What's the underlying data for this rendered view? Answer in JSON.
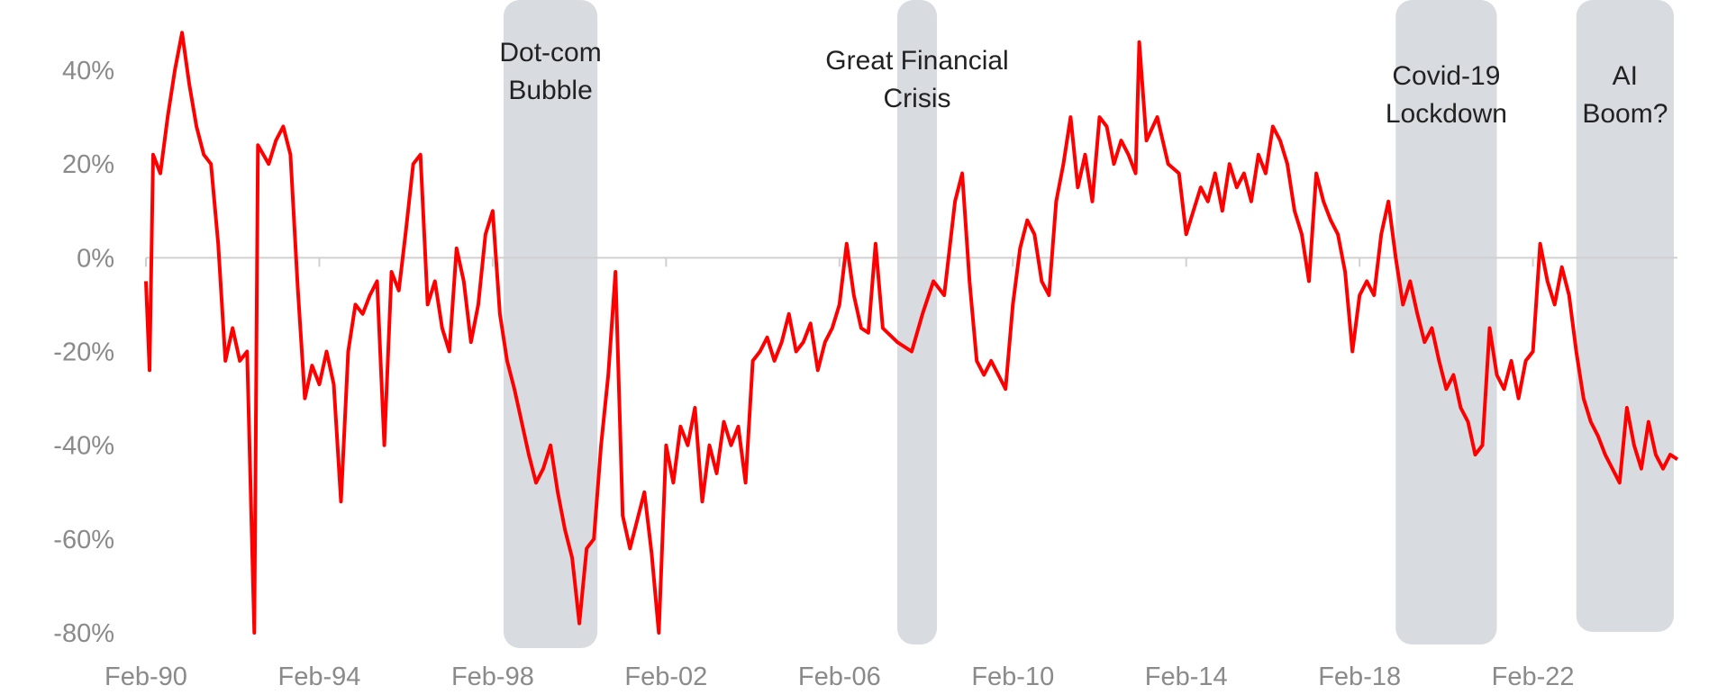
{
  "chart_data": {
    "type": "line",
    "title": "",
    "xlabel": "",
    "ylabel": "",
    "x_range": [
      "1990-02",
      "2025-06"
    ],
    "ylim": [
      -80,
      50
    ],
    "y_tick_values": [
      40,
      20,
      0,
      -20,
      -40,
      -60,
      -80
    ],
    "y_tick_labels": [
      "40%",
      "20%",
      "0%",
      "-20%",
      "-40%",
      "-60%",
      "-80%"
    ],
    "x_ticks": [
      {
        "label": "Feb-90",
        "date": "1990-02"
      },
      {
        "label": "Feb-94",
        "date": "1994-02"
      },
      {
        "label": "Feb-98",
        "date": "1998-02"
      },
      {
        "label": "Feb-02",
        "date": "2002-02"
      },
      {
        "label": "Feb-06",
        "date": "2006-02"
      },
      {
        "label": "Feb-10",
        "date": "2010-02"
      },
      {
        "label": "Feb-14",
        "date": "2014-02"
      },
      {
        "label": "Feb-18",
        "date": "2018-02"
      },
      {
        "label": "Feb-22",
        "date": "2022-02"
      }
    ],
    "grid": false,
    "zero_line": true,
    "line_color": "#ff0000",
    "shade_color": "#d8dbe0",
    "shaded_periods": [
      {
        "label_lines": [
          "Dot-com",
          "Bubble"
        ],
        "start": "1998-05",
        "end": "2000-07"
      },
      {
        "label_lines": [
          "Great Financial",
          "Crisis"
        ],
        "start": "2007-06",
        "end": "2008-05"
      },
      {
        "label_lines": [
          "Covid-19",
          "Lockdown"
        ],
        "start": "2018-12",
        "end": "2021-04"
      },
      {
        "label_lines": [
          "AI",
          "Boom?"
        ],
        "start": "2023-02",
        "end": "2025-05"
      }
    ],
    "series": [
      {
        "values": [
          [
            "1990-02",
            -5
          ],
          [
            "1990-03",
            -24
          ],
          [
            "1990-04",
            22
          ],
          [
            "1990-06",
            18
          ],
          [
            "1990-08",
            30
          ],
          [
            "1990-10",
            40
          ],
          [
            "1990-12",
            48
          ],
          [
            "1991-02",
            37
          ],
          [
            "1991-04",
            28
          ],
          [
            "1991-06",
            22
          ],
          [
            "1991-08",
            20
          ],
          [
            "1991-10",
            3
          ],
          [
            "1991-12",
            -22
          ],
          [
            "1992-02",
            -15
          ],
          [
            "1992-04",
            -22
          ],
          [
            "1992-06",
            -20
          ],
          [
            "1992-08",
            -80
          ],
          [
            "1992-09",
            24
          ],
          [
            "1992-12",
            20
          ],
          [
            "1993-02",
            25
          ],
          [
            "1993-04",
            28
          ],
          [
            "1993-06",
            22
          ],
          [
            "1993-08",
            -6
          ],
          [
            "1993-10",
            -30
          ],
          [
            "1993-12",
            -23
          ],
          [
            "1994-02",
            -27
          ],
          [
            "1994-04",
            -20
          ],
          [
            "1994-06",
            -27
          ],
          [
            "1994-08",
            -52
          ],
          [
            "1994-10",
            -20
          ],
          [
            "1994-12",
            -10
          ],
          [
            "1995-02",
            -12
          ],
          [
            "1995-04",
            -8
          ],
          [
            "1995-06",
            -5
          ],
          [
            "1995-08",
            -40
          ],
          [
            "1995-10",
            -3
          ],
          [
            "1995-12",
            -7
          ],
          [
            "1996-02",
            6
          ],
          [
            "1996-04",
            20
          ],
          [
            "1996-06",
            22
          ],
          [
            "1996-08",
            -10
          ],
          [
            "1996-10",
            -5
          ],
          [
            "1996-12",
            -15
          ],
          [
            "1997-02",
            -20
          ],
          [
            "1997-04",
            2
          ],
          [
            "1997-06",
            -5
          ],
          [
            "1997-08",
            -18
          ],
          [
            "1997-10",
            -10
          ],
          [
            "1997-12",
            5
          ],
          [
            "1998-02",
            10
          ],
          [
            "1998-04",
            -12
          ],
          [
            "1998-06",
            -22
          ],
          [
            "1998-08",
            -28
          ],
          [
            "1998-10",
            -35
          ],
          [
            "1998-12",
            -42
          ],
          [
            "1999-02",
            -48
          ],
          [
            "1999-04",
            -45
          ],
          [
            "1999-06",
            -40
          ],
          [
            "1999-08",
            -50
          ],
          [
            "1999-10",
            -58
          ],
          [
            "1999-12",
            -64
          ],
          [
            "2000-02",
            -78
          ],
          [
            "2000-04",
            -62
          ],
          [
            "2000-06",
            -60
          ],
          [
            "2000-08",
            -40
          ],
          [
            "2000-10",
            -25
          ],
          [
            "2000-12",
            -3
          ],
          [
            "2001-02",
            -55
          ],
          [
            "2001-04",
            -62
          ],
          [
            "2001-06",
            -56
          ],
          [
            "2001-08",
            -50
          ],
          [
            "2001-10",
            -63
          ],
          [
            "2001-12",
            -80
          ],
          [
            "2002-02",
            -40
          ],
          [
            "2002-04",
            -48
          ],
          [
            "2002-06",
            -36
          ],
          [
            "2002-08",
            -40
          ],
          [
            "2002-10",
            -32
          ],
          [
            "2002-12",
            -52
          ],
          [
            "2003-02",
            -40
          ],
          [
            "2003-04",
            -46
          ],
          [
            "2003-06",
            -35
          ],
          [
            "2003-08",
            -40
          ],
          [
            "2003-10",
            -36
          ],
          [
            "2003-12",
            -48
          ],
          [
            "2004-02",
            -22
          ],
          [
            "2004-04",
            -20
          ],
          [
            "2004-06",
            -17
          ],
          [
            "2004-08",
            -22
          ],
          [
            "2004-10",
            -18
          ],
          [
            "2004-12",
            -12
          ],
          [
            "2005-02",
            -20
          ],
          [
            "2005-04",
            -18
          ],
          [
            "2005-06",
            -14
          ],
          [
            "2005-08",
            -24
          ],
          [
            "2005-10",
            -18
          ],
          [
            "2005-12",
            -15
          ],
          [
            "2006-02",
            -10
          ],
          [
            "2006-04",
            3
          ],
          [
            "2006-06",
            -8
          ],
          [
            "2006-08",
            -15
          ],
          [
            "2006-10",
            -16
          ],
          [
            "2006-12",
            3
          ],
          [
            "2007-02",
            -15
          ],
          [
            "2007-06",
            -18
          ],
          [
            "2007-10",
            -20
          ],
          [
            "2008-01",
            -12
          ],
          [
            "2008-04",
            -5
          ],
          [
            "2008-07",
            -8
          ],
          [
            "2008-10",
            12
          ],
          [
            "2008-12",
            18
          ],
          [
            "2009-02",
            -5
          ],
          [
            "2009-04",
            -22
          ],
          [
            "2009-06",
            -25
          ],
          [
            "2009-08",
            -22
          ],
          [
            "2009-10",
            -25
          ],
          [
            "2009-12",
            -28
          ],
          [
            "2010-02",
            -10
          ],
          [
            "2010-04",
            2
          ],
          [
            "2010-06",
            8
          ],
          [
            "2010-08",
            5
          ],
          [
            "2010-10",
            -5
          ],
          [
            "2010-12",
            -8
          ],
          [
            "2011-02",
            12
          ],
          [
            "2011-04",
            20
          ],
          [
            "2011-06",
            30
          ],
          [
            "2011-08",
            15
          ],
          [
            "2011-10",
            22
          ],
          [
            "2011-12",
            12
          ],
          [
            "2012-02",
            30
          ],
          [
            "2012-04",
            28
          ],
          [
            "2012-06",
            20
          ],
          [
            "2012-08",
            25
          ],
          [
            "2012-10",
            22
          ],
          [
            "2012-12",
            18
          ],
          [
            "2013-01",
            46
          ],
          [
            "2013-03",
            25
          ],
          [
            "2013-06",
            30
          ],
          [
            "2013-09",
            20
          ],
          [
            "2013-12",
            18
          ],
          [
            "2014-02",
            5
          ],
          [
            "2014-04",
            10
          ],
          [
            "2014-06",
            15
          ],
          [
            "2014-08",
            12
          ],
          [
            "2014-10",
            18
          ],
          [
            "2014-12",
            10
          ],
          [
            "2015-02",
            20
          ],
          [
            "2015-04",
            15
          ],
          [
            "2015-06",
            18
          ],
          [
            "2015-08",
            12
          ],
          [
            "2015-10",
            22
          ],
          [
            "2015-12",
            18
          ],
          [
            "2016-02",
            28
          ],
          [
            "2016-04",
            25
          ],
          [
            "2016-06",
            20
          ],
          [
            "2016-08",
            10
          ],
          [
            "2016-10",
            5
          ],
          [
            "2016-12",
            -5
          ],
          [
            "2017-02",
            18
          ],
          [
            "2017-04",
            12
          ],
          [
            "2017-06",
            8
          ],
          [
            "2017-08",
            5
          ],
          [
            "2017-10",
            -3
          ],
          [
            "2017-12",
            -20
          ],
          [
            "2018-02",
            -8
          ],
          [
            "2018-04",
            -5
          ],
          [
            "2018-06",
            -8
          ],
          [
            "2018-08",
            5
          ],
          [
            "2018-10",
            12
          ],
          [
            "2018-12",
            0
          ],
          [
            "2019-02",
            -10
          ],
          [
            "2019-04",
            -5
          ],
          [
            "2019-06",
            -12
          ],
          [
            "2019-08",
            -18
          ],
          [
            "2019-10",
            -15
          ],
          [
            "2019-12",
            -22
          ],
          [
            "2020-02",
            -28
          ],
          [
            "2020-04",
            -25
          ],
          [
            "2020-06",
            -32
          ],
          [
            "2020-08",
            -35
          ],
          [
            "2020-10",
            -42
          ],
          [
            "2020-12",
            -40
          ],
          [
            "2021-02",
            -15
          ],
          [
            "2021-04",
            -25
          ],
          [
            "2021-06",
            -28
          ],
          [
            "2021-08",
            -22
          ],
          [
            "2021-10",
            -30
          ],
          [
            "2021-12",
            -22
          ],
          [
            "2022-02",
            -20
          ],
          [
            "2022-04",
            3
          ],
          [
            "2022-06",
            -5
          ],
          [
            "2022-08",
            -10
          ],
          [
            "2022-10",
            -2
          ],
          [
            "2022-12",
            -8
          ],
          [
            "2023-02",
            -20
          ],
          [
            "2023-04",
            -30
          ],
          [
            "2023-06",
            -35
          ],
          [
            "2023-08",
            -38
          ],
          [
            "2023-10",
            -42
          ],
          [
            "2023-12",
            -45
          ],
          [
            "2024-02",
            -48
          ],
          [
            "2024-04",
            -32
          ],
          [
            "2024-06",
            -40
          ],
          [
            "2024-08",
            -45
          ],
          [
            "2024-10",
            -35
          ],
          [
            "2024-12",
            -42
          ],
          [
            "2025-02",
            -45
          ],
          [
            "2025-04",
            -42
          ],
          [
            "2025-06",
            -43
          ]
        ]
      }
    ]
  }
}
